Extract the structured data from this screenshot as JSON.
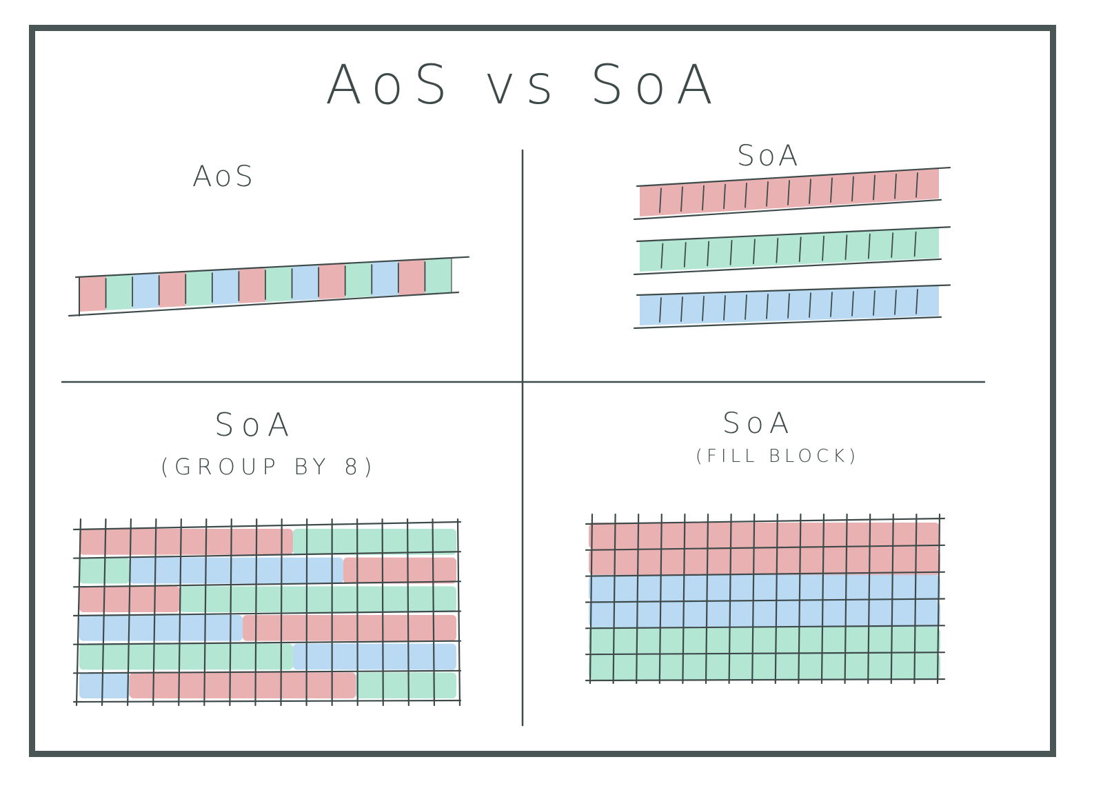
{
  "title": "AoS vs SoA",
  "panels": {
    "top_left": {
      "label": "AoS"
    },
    "top_right": {
      "label": "SoA"
    },
    "bottom_left": {
      "label": "SoA",
      "sublabel": "(GROUP BY 8)"
    },
    "bottom_right": {
      "label": "SoA",
      "sublabel": "(FILL BLOCK)"
    }
  },
  "colors": {
    "red": "#e8a9ab",
    "green": "#ace3cf",
    "blue": "#b3d6f2",
    "ink": "#3e4a4a",
    "frame": "#4a5656"
  }
}
